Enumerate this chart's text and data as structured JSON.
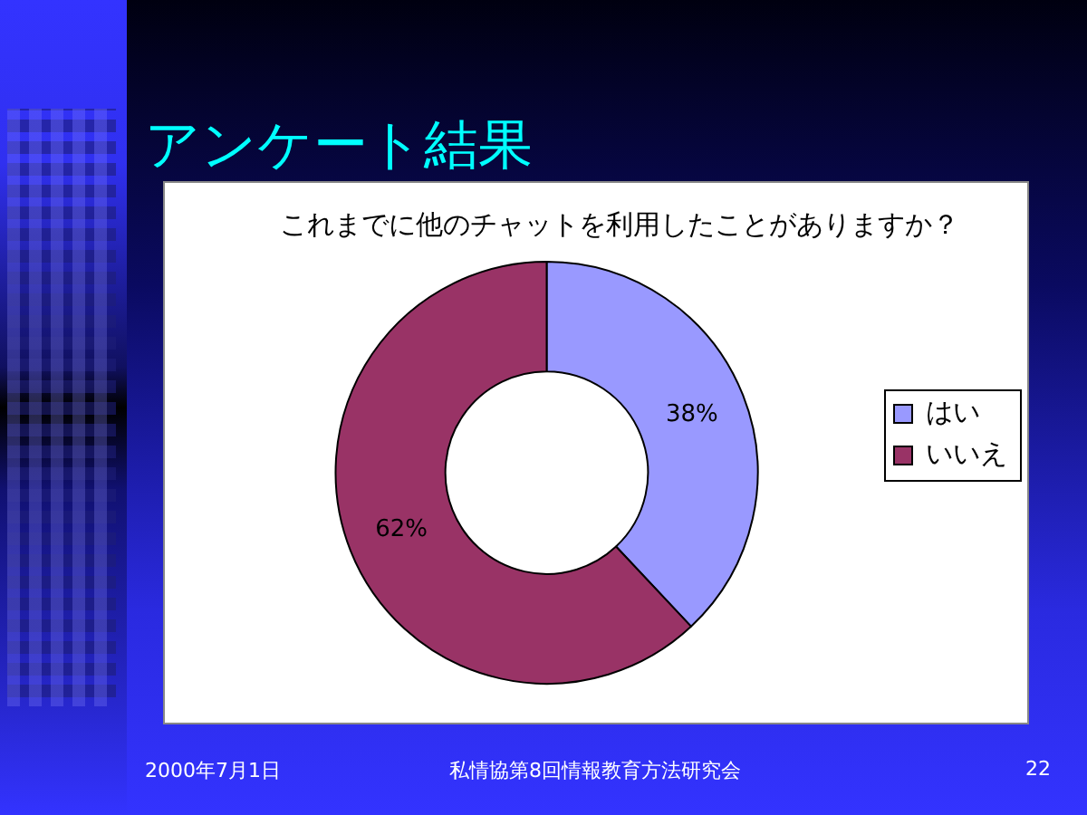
{
  "chart_data": {
    "type": "donut",
    "title": "アンケート結果",
    "subtitle": "これまでに他のチャットを利用したことがありますか？",
    "categories": [
      "はい",
      "いいえ"
    ],
    "values": [
      38,
      62
    ],
    "colors": [
      "#9999ff",
      "#993366"
    ],
    "value_labels": [
      "38%",
      "62%"
    ],
    "legend": "right",
    "annotations": [
      "2000年7月1日",
      "私情協第8回情報教育方法研究会",
      "22"
    ]
  }
}
